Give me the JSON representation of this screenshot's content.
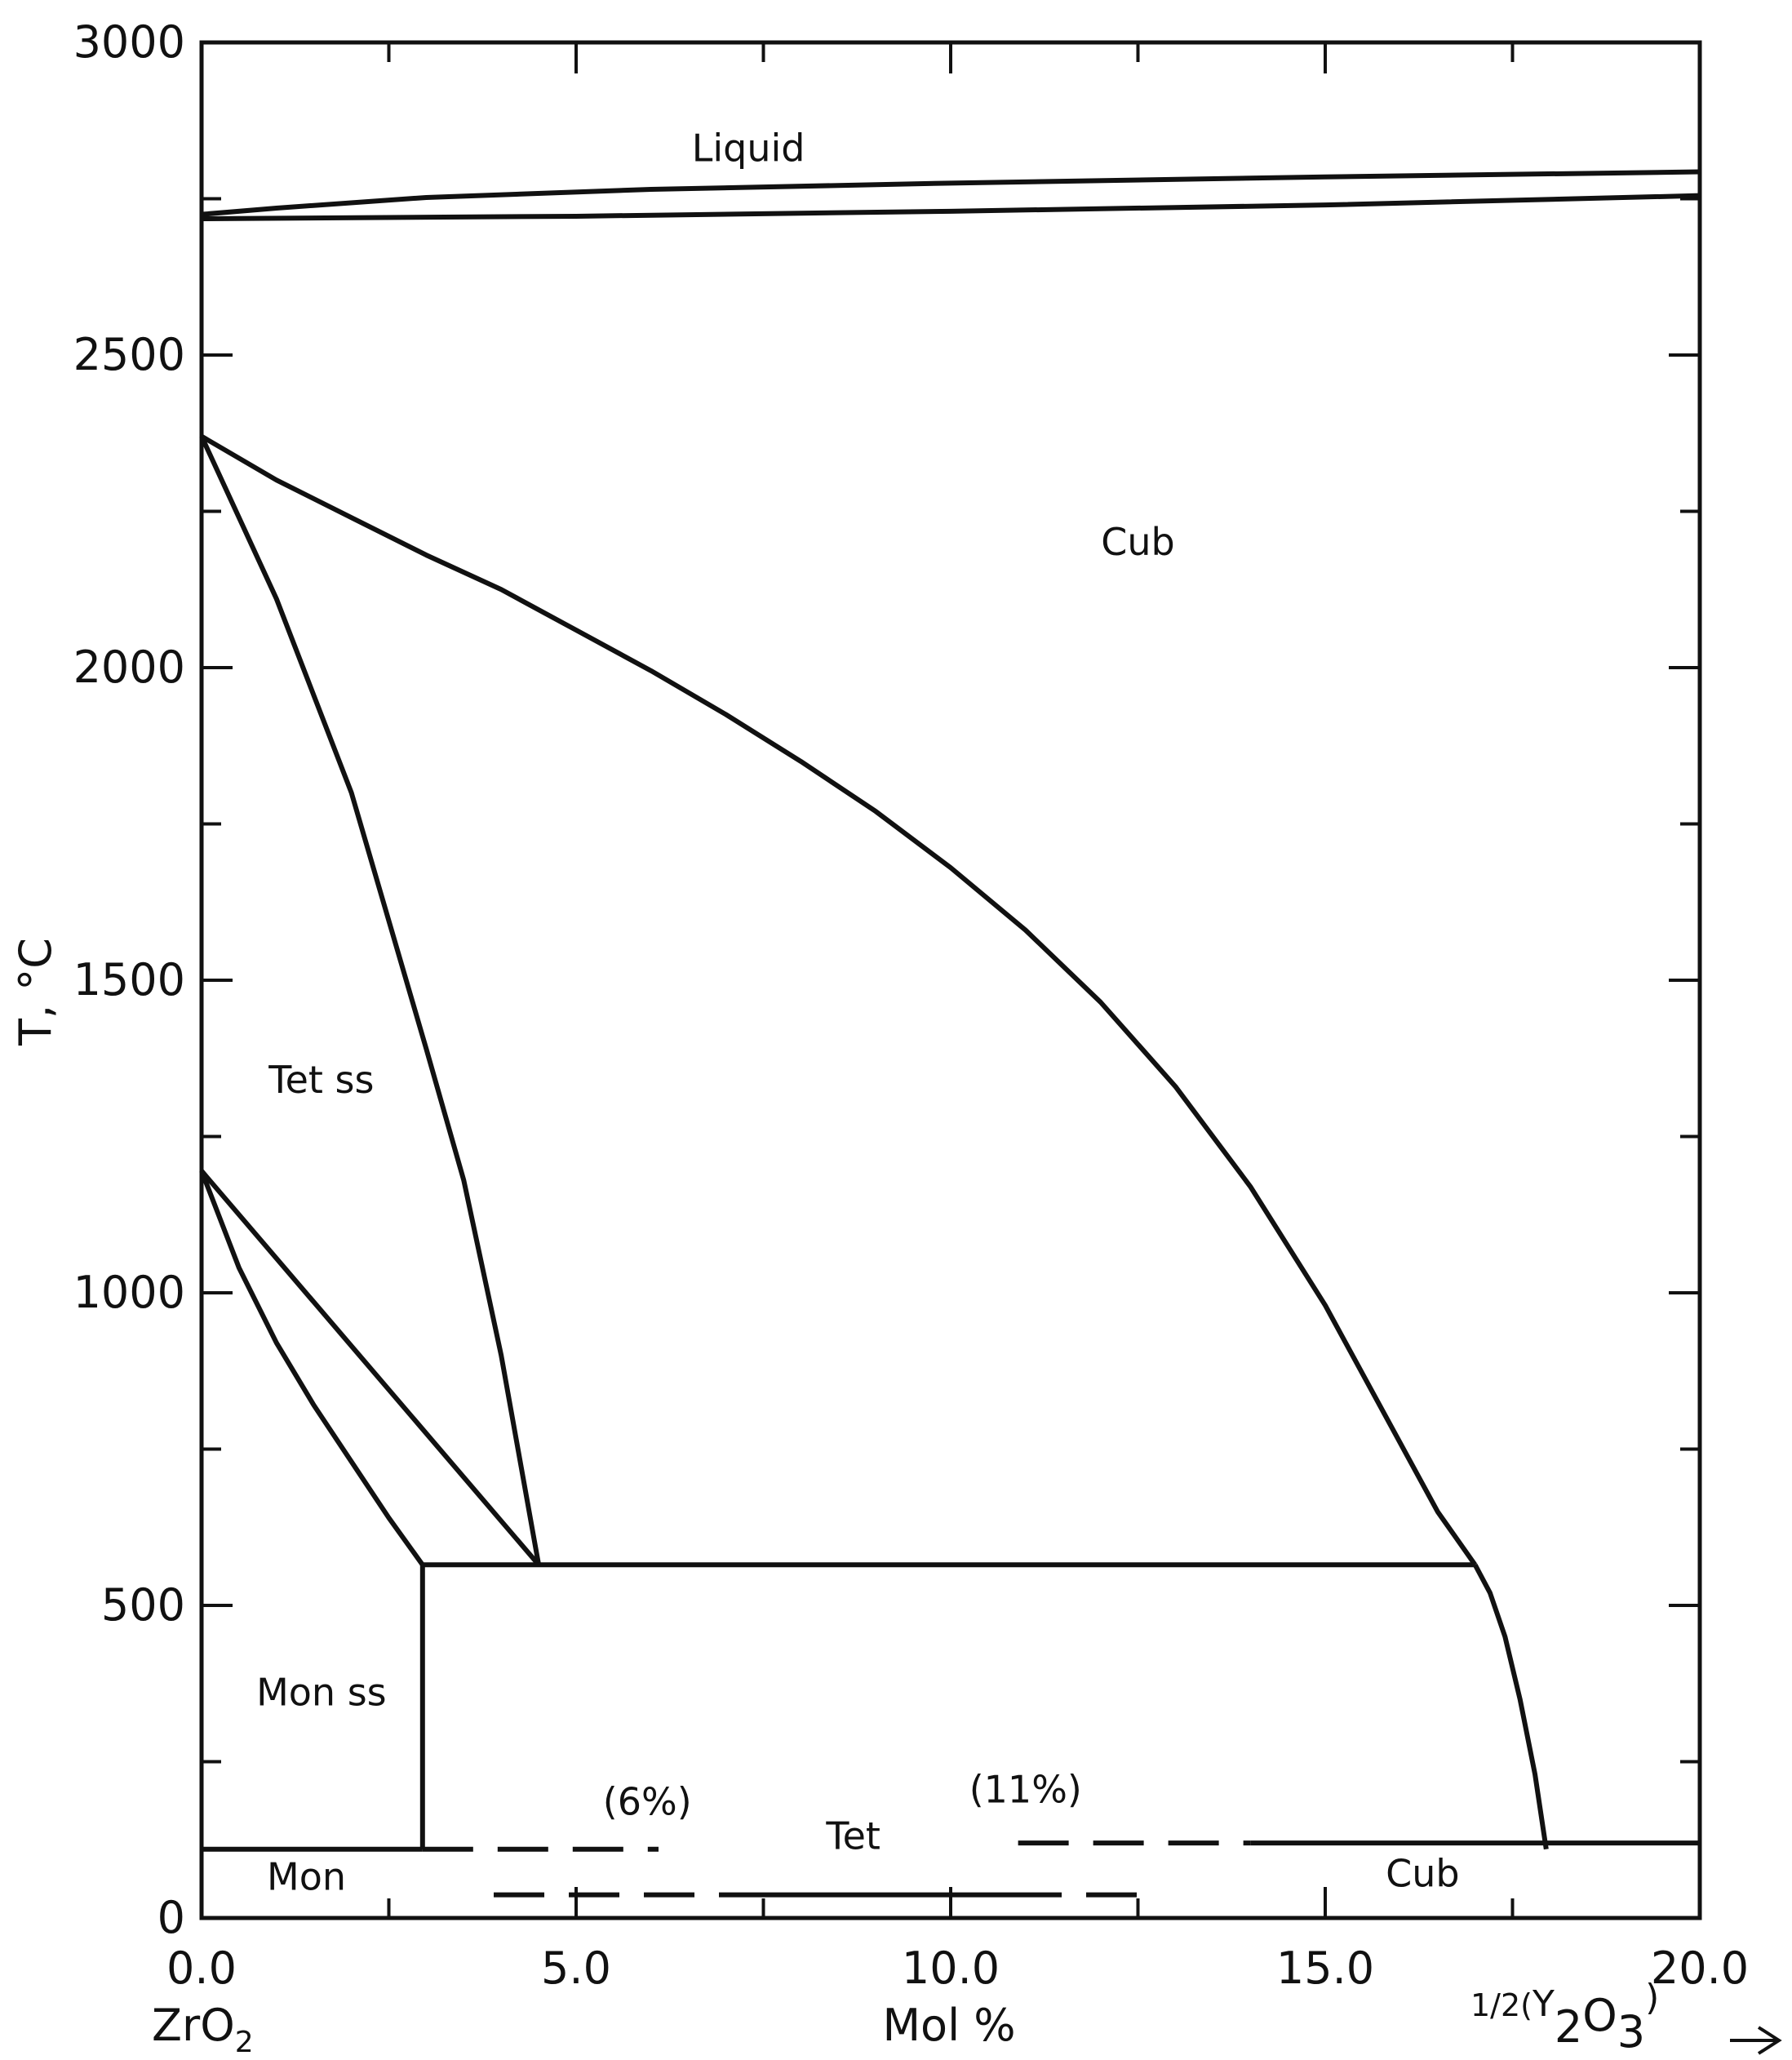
{
  "chart_data": {
    "type": "phase-diagram",
    "xlabel": "Mol %",
    "ylabel": "T, °C",
    "xlim": [
      0,
      20
    ],
    "ylim": [
      0,
      3000
    ],
    "x_ticks": [
      "0.0",
      "5.0",
      "10.0",
      "15.0",
      "20.0"
    ],
    "y_ticks": [
      "0",
      "500",
      "1000",
      "1500",
      "2000",
      "2500",
      "3000"
    ],
    "x_left_label": {
      "main": "ZrO",
      "sub": "2"
    },
    "x_right_label": {
      "prefix": "1/2(",
      "y": "Y",
      "sub1": "2",
      "o": "O",
      "sub2": "3",
      "suffix": ")"
    },
    "arrow": "→",
    "regions": [
      {
        "label": "Liquid",
        "x": 7.3,
        "y": 2810
      },
      {
        "label": "Cub",
        "x": 12.5,
        "y": 2180
      },
      {
        "label": "Tet ss",
        "x": 1.6,
        "y": 1320
      },
      {
        "label": "Mon ss",
        "x": 1.6,
        "y": 340
      },
      {
        "label": "Tet",
        "x": 8.7,
        "y": 110
      },
      {
        "label": "Mon",
        "x": 1.4,
        "y": 45
      },
      {
        "label": "Cub",
        "x": 16.3,
        "y": 50
      },
      {
        "label": "(6%)",
        "x": 5.95,
        "y": 165
      },
      {
        "label": "(11%)",
        "x": 11.0,
        "y": 185
      }
    ],
    "boundaries": [
      {
        "name": "liquidus",
        "style": "solid",
        "points": [
          [
            0,
            2725
          ],
          [
            1,
            2735
          ],
          [
            3,
            2752
          ],
          [
            6,
            2765
          ],
          [
            10,
            2775
          ],
          [
            15,
            2785
          ],
          [
            20,
            2793
          ]
        ]
      },
      {
        "name": "solidus",
        "style": "solid",
        "points": [
          [
            0,
            2718
          ],
          [
            5,
            2722
          ],
          [
            10,
            2730
          ],
          [
            15,
            2740
          ],
          [
            20,
            2755
          ]
        ]
      },
      {
        "name": "tet-cub-boundary",
        "style": "solid",
        "points": [
          [
            0,
            2370
          ],
          [
            1,
            2300
          ],
          [
            2,
            2240
          ],
          [
            3,
            2180
          ],
          [
            4,
            2125
          ],
          [
            5,
            2060
          ],
          [
            6,
            1995
          ],
          [
            7,
            1925
          ],
          [
            8,
            1850
          ],
          [
            9,
            1770
          ],
          [
            10,
            1680
          ],
          [
            11,
            1580
          ],
          [
            12,
            1465
          ],
          [
            13,
            1330
          ],
          [
            14,
            1170
          ],
          [
            15,
            980
          ],
          [
            16,
            760
          ],
          [
            16.5,
            650
          ],
          [
            17.0,
            565
          ]
        ]
      },
      {
        "name": "tet-solvus",
        "style": "solid",
        "points": [
          [
            0,
            2370
          ],
          [
            1,
            2110
          ],
          [
            2,
            1800
          ],
          [
            3,
            1390
          ],
          [
            3.5,
            1180
          ],
          [
            4,
            900
          ],
          [
            4.5,
            565
          ]
        ]
      },
      {
        "name": "mon-tet-upper",
        "style": "solid",
        "points": [
          [
            0,
            1195
          ],
          [
            4.5,
            565
          ]
        ]
      },
      {
        "name": "mon-tet-lower",
        "style": "solid",
        "points": [
          [
            0,
            1195
          ],
          [
            0.5,
            1040
          ],
          [
            1,
            920
          ],
          [
            1.5,
            820
          ],
          [
            2,
            730
          ],
          [
            2.5,
            640
          ],
          [
            2.95,
            565
          ]
        ]
      },
      {
        "name": "eutectoid",
        "style": "solid",
        "points": [
          [
            2.95,
            565
          ],
          [
            17.0,
            565
          ]
        ]
      },
      {
        "name": "mon-ss-solvus",
        "style": "solid",
        "points": [
          [
            2.95,
            565
          ],
          [
            2.95,
            110
          ]
        ]
      },
      {
        "name": "cub-solvus-low",
        "style": "solid",
        "points": [
          [
            17.0,
            565
          ],
          [
            17.2,
            520
          ],
          [
            17.4,
            450
          ],
          [
            17.6,
            350
          ],
          [
            17.8,
            230
          ],
          [
            17.95,
            110
          ]
        ]
      },
      {
        "name": "mon-baseline",
        "style": "solid",
        "points": [
          [
            0,
            110
          ],
          [
            2.95,
            110
          ]
        ]
      },
      {
        "name": "cub-baseline",
        "style": "solid",
        "points": [
          [
            14.0,
            120
          ],
          [
            20,
            120
          ]
        ]
      },
      {
        "name": "t0-6pct",
        "style": "dashed",
        "points": [
          [
            2.95,
            110
          ],
          [
            6.1,
            110
          ]
        ]
      },
      {
        "name": "t0-11pct",
        "style": "dashed",
        "points": [
          [
            10.9,
            120
          ],
          [
            14.0,
            120
          ]
        ]
      },
      {
        "name": "lower-composition-line",
        "style": "dashed-solid",
        "points": [
          [
            3.9,
            37
          ],
          [
            12.8,
            37
          ]
        ]
      }
    ]
  }
}
